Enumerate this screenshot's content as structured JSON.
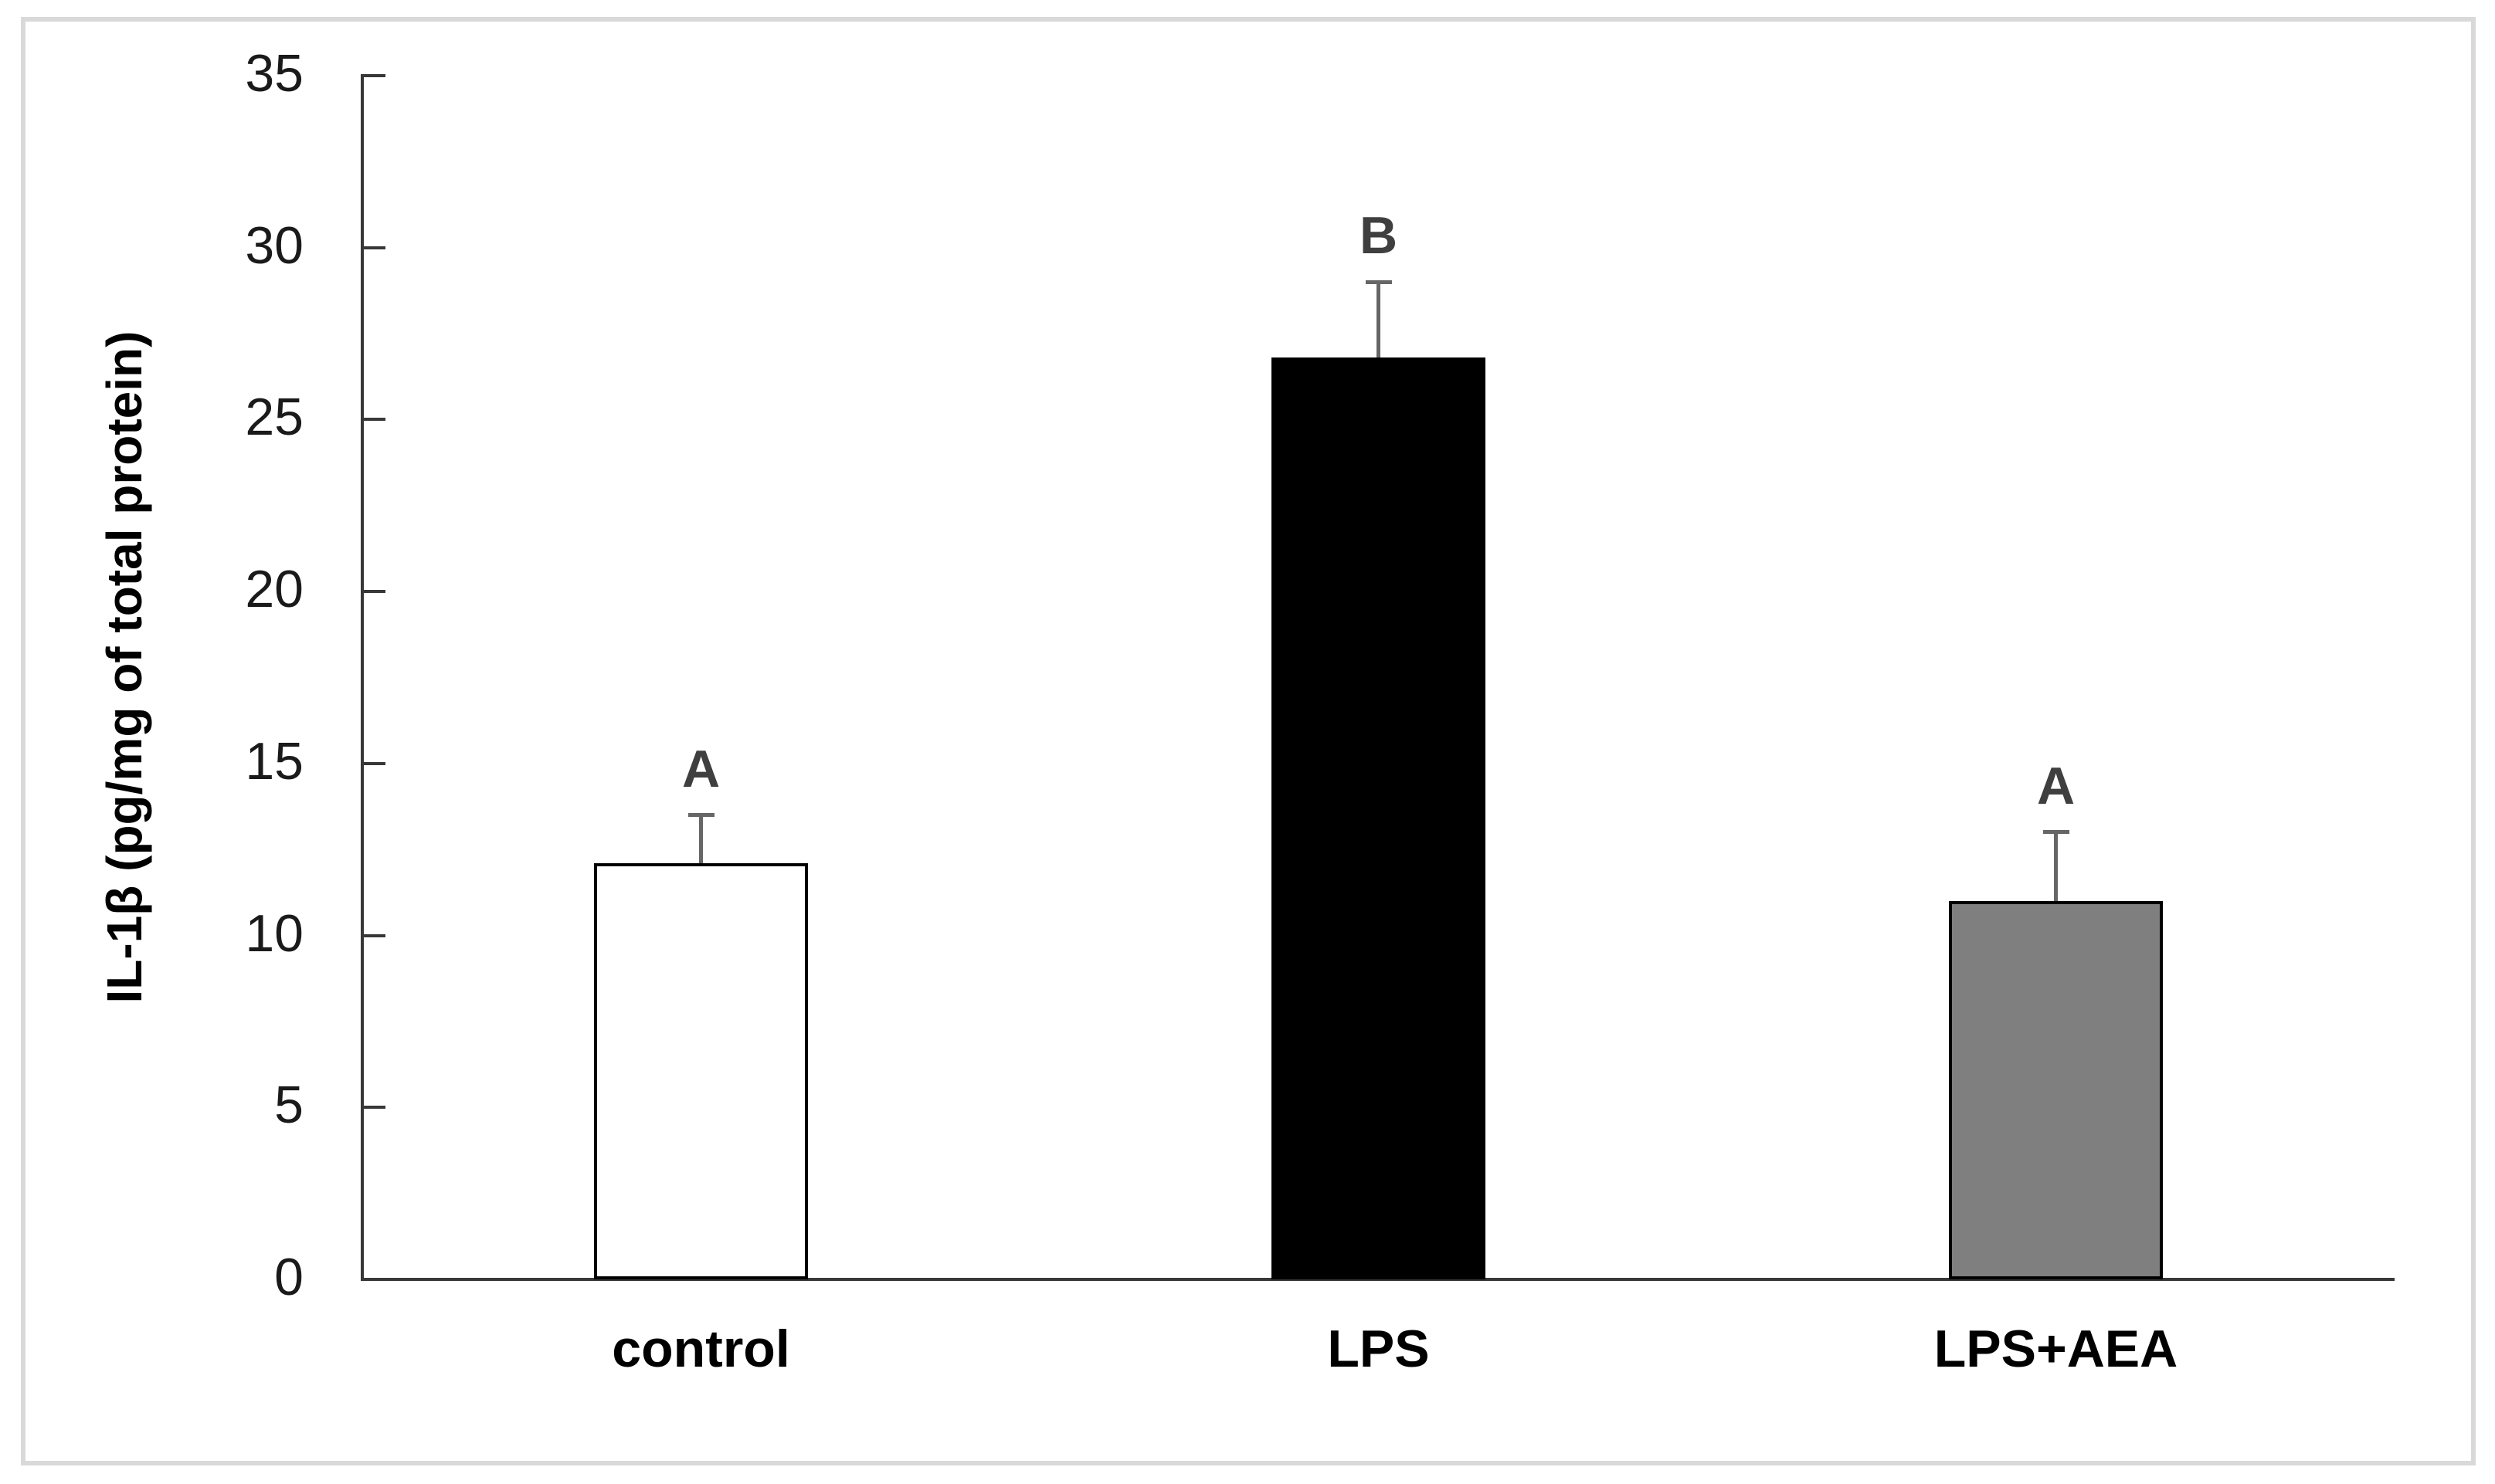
{
  "figure": {
    "background": "#ffffff",
    "border_color": "#d9d9d9"
  },
  "chart_data": {
    "type": "bar",
    "title": "",
    "xlabel": "",
    "ylabel": "IL-1β (pg/mg of total protein)",
    "categories": [
      "control",
      "LPS",
      "LPS+AEA"
    ],
    "values": [
      12.1,
      26.8,
      11.0
    ],
    "errors_plus": [
      1.4,
      2.2,
      2.0
    ],
    "significance_letters": [
      "A",
      "B",
      "A"
    ],
    "bar_fills": [
      "#ffffff",
      "#000000",
      "#7f7f7f"
    ],
    "bar_border_color": "#000000",
    "error_bar_color": "#666666",
    "letter_color": "#3f3f3f",
    "axis_color": "#383838",
    "tick_label_color": "#1a1a1a",
    "ylim": [
      0,
      35
    ],
    "yticks": [
      0,
      5,
      10,
      15,
      20,
      25,
      30,
      35
    ],
    "grid": false,
    "legend": false
  }
}
